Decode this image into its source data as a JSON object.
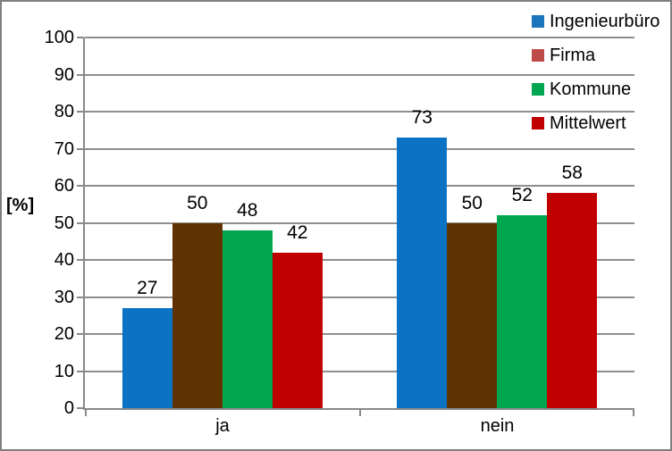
{
  "chart_data": {
    "type": "bar",
    "title": "",
    "categories": [
      "ja",
      "nein"
    ],
    "series": [
      {
        "name": "Ingenieurbüro",
        "values": [
          27,
          73
        ],
        "bar_color": "#0C72C4",
        "legend_color": "#1B75BC"
      },
      {
        "name": "Firma",
        "values": [
          50,
          50
        ],
        "bar_color": "#5F3301",
        "legend_color": "#BE4B48"
      },
      {
        "name": "Kommune",
        "values": [
          48,
          52
        ],
        "bar_color": "#00A650",
        "legend_color": "#00A650"
      },
      {
        "name": "Mittelwert",
        "values": [
          42,
          58
        ],
        "bar_color": "#C00000",
        "legend_color": "#C00000"
      }
    ],
    "data_labels": {
      "ja": [
        27,
        50,
        48,
        42
      ],
      "nein": [
        73,
        50,
        52,
        58
      ]
    },
    "ylabel": "[%]",
    "ylim": [
      0,
      100
    ],
    "ytick_step": 10,
    "yticks": [
      0,
      10,
      20,
      30,
      40,
      50,
      60,
      70,
      80,
      90,
      100
    ],
    "grid": true,
    "legend_position": "top-right",
    "data_label_position": "outside-end"
  },
  "colors": {
    "frame_border": "#7F7F7F",
    "axis_line": "#898989",
    "gridline": "#8E8E8E",
    "text": "#000000",
    "background": "#FFFFFF"
  }
}
